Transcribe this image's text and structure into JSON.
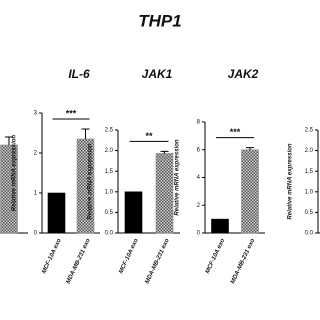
{
  "title": "THP1",
  "chart_data": [
    {
      "type": "bar",
      "categories": [
        null
      ],
      "values": [
        2.2
      ],
      "errors": [
        0.2
      ],
      "colors": [
        "#8c8c8c"
      ],
      "hatch": [
        true
      ],
      "ylim": [
        0,
        3
      ],
      "yticks": [],
      "significance": null
    },
    {
      "type": "bar",
      "title": "IL-6",
      "ylabel": "Relative mRNA expression",
      "categories": [
        "MCF-10A exo",
        "MDA-MB-231 exo"
      ],
      "values": [
        1,
        2.35
      ],
      "errors": [
        null,
        0.25
      ],
      "colors": [
        "#000000",
        "#8c8c8c"
      ],
      "hatch": [
        false,
        true
      ],
      "ylim": [
        0,
        3
      ],
      "yticks": [
        0,
        1,
        2,
        3
      ],
      "significance": "***"
    },
    {
      "type": "bar",
      "title": "JAK1",
      "ylabel": "Relative mRNA expression",
      "categories": [
        "MCF-10A exo",
        "MDA-MB-231 exo"
      ],
      "values": [
        1,
        1.93
      ],
      "errors": [
        null,
        0.05
      ],
      "colors": [
        "#000000",
        "#8c8c8c"
      ],
      "hatch": [
        false,
        true
      ],
      "ylim": [
        0,
        2.5
      ],
      "yticks": [
        {
          "value": 0,
          "label": "0.0"
        },
        {
          "value": 0.5,
          "label": "0.5"
        },
        {
          "value": 1,
          "label": "1.0"
        },
        {
          "value": 1.5,
          "label": "1.5"
        },
        {
          "value": 2,
          "label": "2.0"
        },
        {
          "value": 2.5,
          "label": "2.5"
        }
      ],
      "significance": "**"
    },
    {
      "type": "bar",
      "title": "JAK2",
      "ylabel": "Relative mRNA expression",
      "categories": [
        "MCF-10A exo",
        "MDA-MB-231 exo"
      ],
      "values": [
        1,
        6
      ],
      "errors": [
        null,
        0.15
      ],
      "colors": [
        "#000000",
        "#8c8c8c"
      ],
      "hatch": [
        false,
        true
      ],
      "ylim": [
        0,
        8
      ],
      "yticks": [
        0,
        2,
        4,
        6,
        8
      ],
      "significance": "***"
    },
    {
      "type": "bar",
      "ylabel": "Relative mRNA expression",
      "categories": [],
      "values": [],
      "errors": [],
      "colors": [],
      "hatch": [],
      "ylim": [
        0,
        2.5
      ],
      "yticks": [
        {
          "value": 0,
          "label": "0.0"
        },
        {
          "value": 0.5,
          "label": "0.5"
        },
        {
          "value": 1,
          "label": "1.0"
        },
        {
          "value": 1.5,
          "label": "1.5"
        },
        {
          "value": 2,
          "label": "2.0"
        },
        {
          "value": 2.5,
          "label": "2.5"
        }
      ],
      "significance": null
    }
  ]
}
